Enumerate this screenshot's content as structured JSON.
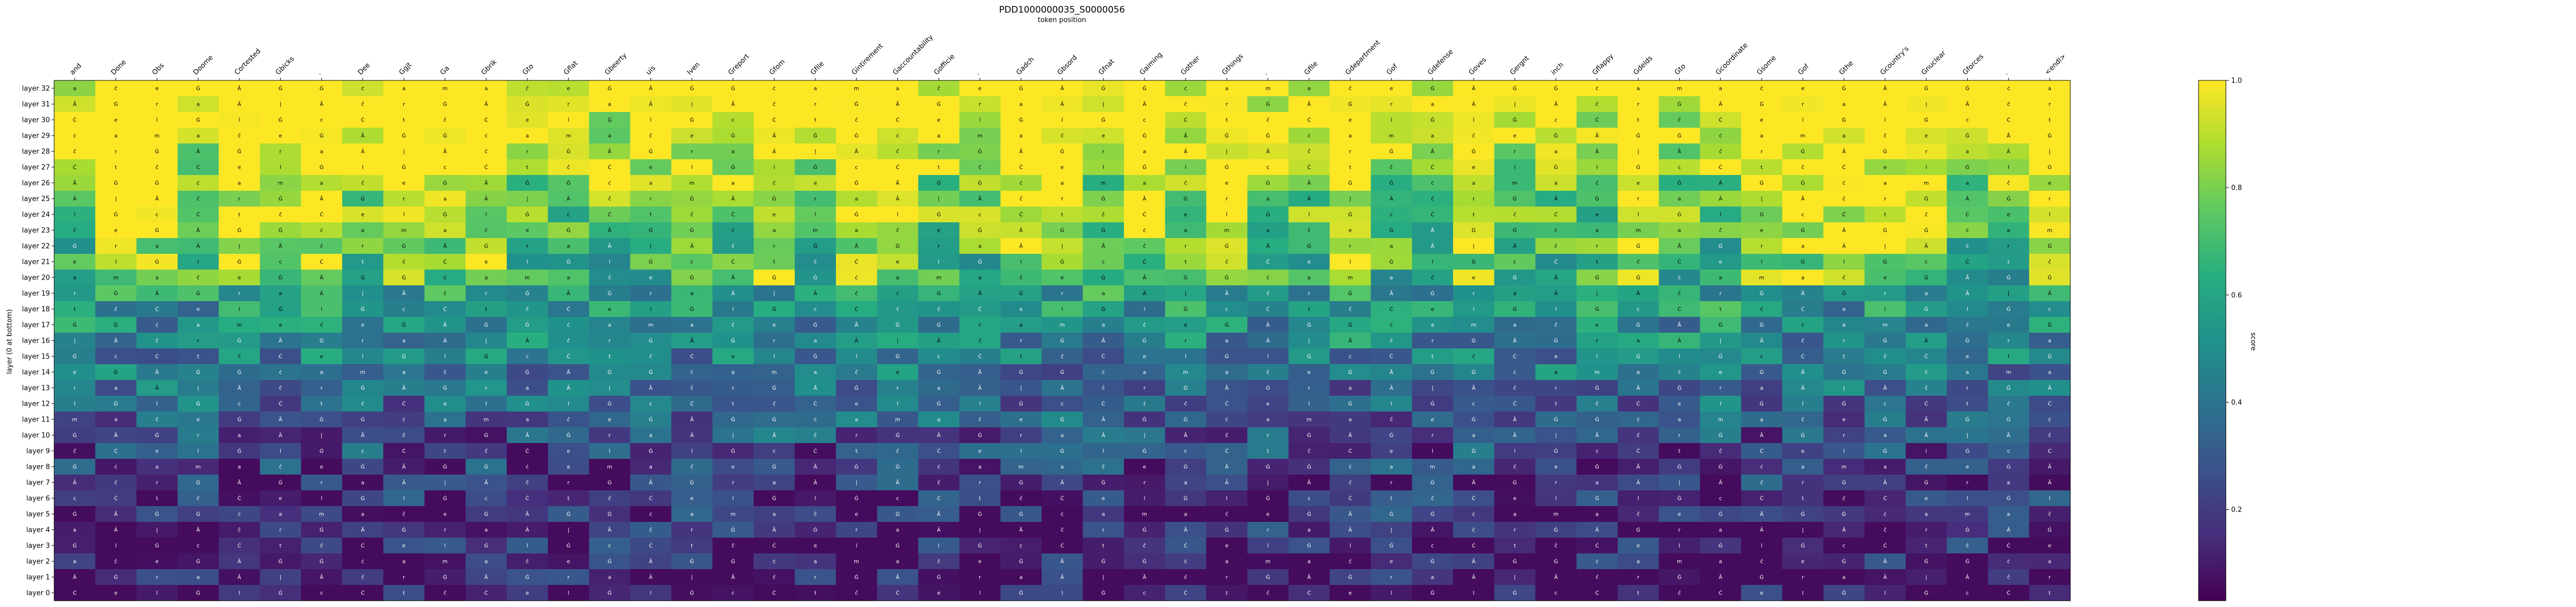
{
  "chart_data": {
    "type": "heatmap",
    "title": "PDD1000000035_S0000056",
    "subtitle": "token position",
    "ylabel": "layer (0 at bottom)",
    "colorbar_label": "score",
    "colorbar_ticks": [
      0.2,
      0.4,
      0.6,
      0.8,
      1.0
    ],
    "colorbar_range": [
      0.03,
      1.0
    ],
    "colormap": "viridis",
    "x_tokens": [
      "and",
      "Done",
      "Obs",
      "Doome",
      "Cortested",
      "Gbicks",
      ".",
      "Dee",
      "Ggjt",
      "Ga",
      "Gbrik",
      "Gto",
      "Gflat",
      "Gbeerty",
      "uis",
      "Iven",
      "Greport",
      "Gfom",
      "Gfile",
      "Gintirement",
      "Gaccountability",
      "Gofficie",
      ".",
      "Gadch",
      "Gbsord",
      "Gfnat",
      "Gaiming",
      "Gother",
      "Gthings",
      ".",
      "Gfile",
      "Gdepartment",
      "Gof",
      "Gdefense",
      "Goves",
      "Gergnt",
      "inch",
      "Gflappy",
      "Gdelds",
      "Gto",
      "Gcoordinate",
      "Gsome",
      "Gof",
      "Gthe",
      "Gcountry's",
      "Gnuclear",
      "Gforces",
      ".",
      "<endl>"
    ],
    "y_layers": [
      "layer 32",
      "layer 31",
      "layer 30",
      "layer 29",
      "layer 28",
      "layer 27",
      "layer 26",
      "layer 25",
      "layer 24",
      "layer 23",
      "layer 22",
      "layer 21",
      "layer 20",
      "layer 19",
      "layer 18",
      "layer 17",
      "layer 16",
      "layer 15",
      "layer 14",
      "layer 13",
      "layer 12",
      "layer 11",
      "layer 10",
      "layer 9",
      "layer 8",
      "layer 7",
      "layer 6",
      "layer 5",
      "layer 4",
      "layer 3",
      "layer 2",
      "layer 1",
      "layer 0"
    ],
    "cell_glyphs": [
      "a",
      "r",
      "c",
      "ĉ",
      "Ġ",
      "Ċ",
      "e",
      "Ã",
      "t",
      "Ġ",
      "Ġ",
      "ĉ",
      "Ã",
      "r",
      "Ċ",
      "Ġ",
      "a",
      "e",
      "Ġ",
      "Ā",
      "l",
      "ċ",
      "|",
      "Ġ",
      "a",
      "Ã",
      "l",
      "m",
      "ĉ",
      "Ġ"
    ]
  }
}
